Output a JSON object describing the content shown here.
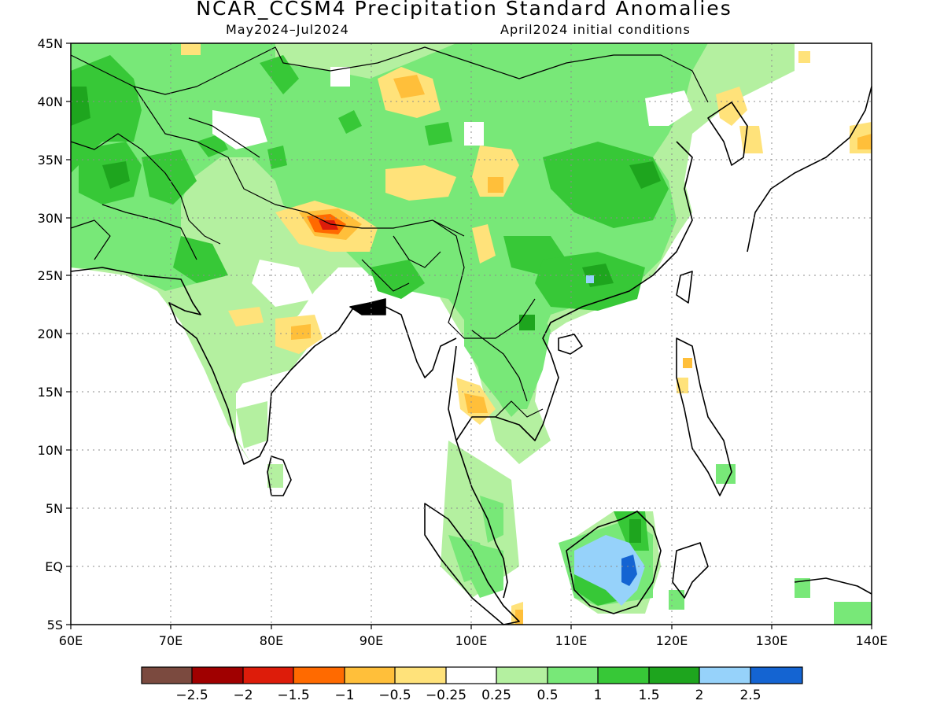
{
  "title": "NCAR_CCSM4 Precipitation Standard Anomalies",
  "subtitle_left": "May2024–Jul2024",
  "subtitle_right": "April2024 initial conditions",
  "map": {
    "lon_range": [
      60,
      140
    ],
    "lat_range": [
      -5,
      45
    ],
    "lat_ticks": [
      "45N",
      "40N",
      "35N",
      "30N",
      "25N",
      "20N",
      "15N",
      "10N",
      "5N",
      "EQ",
      "5S"
    ],
    "lon_ticks": [
      "60E",
      "70E",
      "80E",
      "90E",
      "100E",
      "110E",
      "120E",
      "130E",
      "140E"
    ],
    "gridlines": "dotted"
  },
  "colorbar": {
    "colors": [
      "#7b4a3f",
      "#a00000",
      "#dd1c0a",
      "#ff6a00",
      "#ffbf3a",
      "#ffe27a",
      "#ffffff",
      "#b4f0a0",
      "#78e878",
      "#37c837",
      "#1ea51e",
      "#96d2fa",
      "#1464d2"
    ],
    "labels": [
      "−2.5",
      "−2",
      "−1.5",
      "−1",
      "−0.5",
      "−0.25",
      "0.25",
      "0.5",
      "1",
      "1.5",
      "2",
      "2.5"
    ]
  },
  "legend_colors": {
    "light_green": "#b4f0a0",
    "green": "#78e878",
    "mid_green": "#37c837",
    "dark_green": "#1ea51e",
    "light_orange": "#ffe27a",
    "orange": "#ffbf3a",
    "dark_orange": "#ff6a00",
    "red": "#dd1c0a",
    "light_blue": "#96d2fa",
    "blue": "#1464d2"
  }
}
